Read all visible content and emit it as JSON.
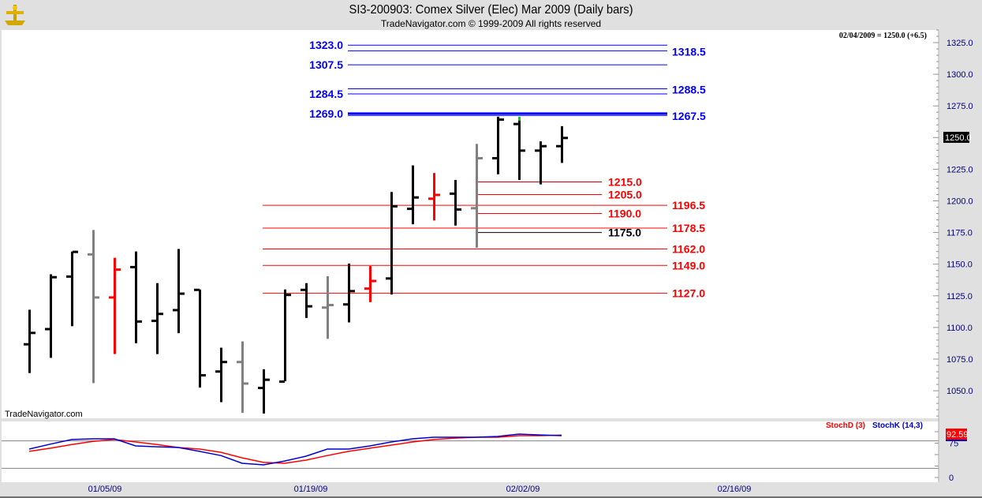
{
  "header": {
    "title": "SI3-200903:  Comex Silver (Elec) Mar 2009  (Daily bars)",
    "subtitle": "TradeNavigator.com © 1999-2009 All rights reserved"
  },
  "info_readout": "02/04/2009 = 1250.0 (+6.5)",
  "watermark": "TradeNavigator.com",
  "current_price_label": "1250.0",
  "colors": {
    "up": "#000000",
    "down_gray": "#808080",
    "red": "#ff0000",
    "blue": "#0000ff",
    "stochD": "#ff0000",
    "stochK": "#0000cc"
  },
  "chart_data": [
    {
      "type": "ohlc",
      "title": "SI3-200903:  Comex Silver (Elec) Mar 2009  (Daily bars)",
      "ylim": [
        1030,
        1335
      ],
      "yticks": [
        "1325.0",
        "1300.0",
        "1275.0",
        "1250.0",
        "1225.0",
        "1200.0",
        "1175.0",
        "1150.0",
        "1125.0",
        "1100.0",
        "1075.0",
        "1050.0"
      ],
      "xticks": [
        "01/05/09",
        "01/19/09",
        "02/02/09",
        "02/16/09"
      ],
      "bars": [
        {
          "date": "12/29/08",
          "o": 1087,
          "h": 1114,
          "l": 1064,
          "c": 1096,
          "color": "black"
        },
        {
          "date": "12/30/08",
          "o": 1099,
          "h": 1142,
          "l": 1076,
          "c": 1140,
          "color": "black"
        },
        {
          "date": "12/31/08",
          "o": 1140.5,
          "h": 1160,
          "l": 1101,
          "c": 1160,
          "color": "black"
        },
        {
          "date": "01/02/09",
          "o": 1158,
          "h": 1177,
          "l": 1056,
          "c": 1124,
          "color": "gray"
        },
        {
          "date": "01/05/09",
          "o": 1124,
          "h": 1155,
          "l": 1079,
          "c": 1146,
          "color": "red"
        },
        {
          "date": "01/06/09",
          "o": 1148,
          "h": 1160,
          "l": 1087.5,
          "c": 1105,
          "color": "black"
        },
        {
          "date": "01/07/09",
          "o": 1105.5,
          "h": 1135,
          "l": 1079,
          "c": 1111,
          "color": "black"
        },
        {
          "date": "01/08/09",
          "o": 1114,
          "h": 1162,
          "l": 1095.5,
          "c": 1127,
          "color": "black"
        },
        {
          "date": "01/09/09",
          "o": 1130,
          "h": 1130,
          "l": 1052.5,
          "c": 1062.5,
          "color": "black"
        },
        {
          "date": "01/12/09",
          "o": 1065.5,
          "h": 1084,
          "l": 1041,
          "c": 1073,
          "color": "black"
        },
        {
          "date": "01/13/09",
          "o": 1073,
          "h": 1089,
          "l": 1032.5,
          "c": 1056,
          "color": "gray"
        },
        {
          "date": "01/14/09",
          "o": 1052.5,
          "h": 1067,
          "l": 1032,
          "c": 1059,
          "color": "black"
        },
        {
          "date": "01/15/09",
          "o": 1057.5,
          "h": 1130,
          "l": 1057.5,
          "c": 1126,
          "color": "black"
        },
        {
          "date": "01/16/09",
          "o": 1130,
          "h": 1135,
          "l": 1107.5,
          "c": 1117,
          "color": "black"
        },
        {
          "date": "01/20/09",
          "o": 1116,
          "h": 1140.5,
          "l": 1091,
          "c": 1118,
          "color": "gray"
        },
        {
          "date": "01/21/09",
          "o": 1118.5,
          "h": 1150.5,
          "l": 1104,
          "c": 1129,
          "color": "black"
        },
        {
          "date": "01/22/09",
          "o": 1131,
          "h": 1148.5,
          "l": 1120,
          "c": 1137,
          "color": "red"
        },
        {
          "date": "01/23/09",
          "o": 1139,
          "h": 1207,
          "l": 1126,
          "c": 1196,
          "color": "black"
        },
        {
          "date": "01/26/09",
          "o": 1194,
          "h": 1228,
          "l": 1181.5,
          "c": 1203,
          "color": "black"
        },
        {
          "date": "01/27/09",
          "o": 1202,
          "h": 1222,
          "l": 1184.5,
          "c": 1205,
          "color": "red"
        },
        {
          "date": "01/28/09",
          "o": 1206,
          "h": 1216.5,
          "l": 1180.5,
          "c": 1193.5,
          "color": "black"
        },
        {
          "date": "01/29/09",
          "o": 1194.5,
          "h": 1245,
          "l": 1163,
          "c": 1234,
          "color": "gray"
        },
        {
          "date": "01/30/09",
          "o": 1234,
          "h": 1266.5,
          "l": 1221,
          "c": 1264.5,
          "color": "black"
        },
        {
          "date": "02/02/09",
          "o": 1261,
          "h": 1264,
          "l": 1216.5,
          "c": 1240,
          "color": "black",
          "marker": "green"
        },
        {
          "date": "02/03/09",
          "o": 1240,
          "h": 1247,
          "l": 1213,
          "c": 1243.5,
          "color": "black"
        },
        {
          "date": "02/04/09",
          "o": 1243.5,
          "h": 1259,
          "l": 1230,
          "c": 1250,
          "color": "black"
        }
      ],
      "levels_blue": {
        "left": [
          {
            "value": 1323.0,
            "label": "1323.0"
          },
          {
            "value": 1307.5,
            "label": "1307.5"
          },
          {
            "value": 1284.5,
            "label": "1284.5"
          },
          {
            "value": 1269.0,
            "label": "1269.0"
          }
        ],
        "right": [
          {
            "value": 1318.5,
            "label": "1318.5"
          },
          {
            "value": 1288.5,
            "label": "1288.5"
          },
          {
            "value": 1267.5,
            "label": "1267.5"
          }
        ]
      },
      "levels_long": [
        {
          "value": 1196.5,
          "label": "1196.5",
          "color": "#ff0000"
        },
        {
          "value": 1178.5,
          "label": "1178.5",
          "color": "#ff0000"
        },
        {
          "value": 1162.0,
          "label": "1162.0",
          "color": "#ff0000"
        },
        {
          "value": 1149.0,
          "label": "1149.0",
          "color": "#ff0000"
        },
        {
          "value": 1127.0,
          "label": "1127.0",
          "color": "#ff0000"
        }
      ],
      "levels_short": [
        {
          "value": 1215.0,
          "label": "1215.0",
          "color": "#cc0000"
        },
        {
          "value": 1205.0,
          "label": "1205.0",
          "color": "#ff0000"
        },
        {
          "value": 1190.0,
          "label": "1190.0",
          "color": "#ff0000"
        },
        {
          "value": 1175.0,
          "label": "1175.0",
          "color": "#000000"
        }
      ]
    },
    {
      "type": "line",
      "ylim": [
        0,
        100
      ],
      "yticks": [
        "75",
        "0"
      ],
      "reference_lines": [
        80,
        20
      ],
      "last_value_label": "92.59",
      "series": [
        {
          "name": "StochD (3)",
          "color": "#ff0000",
          "values": [
            57,
            64,
            72,
            79,
            83,
            77.6,
            72,
            65.5,
            62,
            55,
            43,
            33,
            31,
            38,
            48,
            57,
            64,
            70.7,
            77.6,
            83,
            86,
            88,
            88,
            91.4,
            91.4,
            92.59
          ]
        },
        {
          "name": "StochK (14,3)",
          "color": "#0000cc",
          "values": [
            62,
            73,
            83,
            84.5,
            84.5,
            69,
            67,
            65.5,
            57,
            48,
            31,
            27.6,
            36,
            46.5,
            62,
            62,
            69,
            77.6,
            84.5,
            88,
            88,
            88,
            89.7,
            94.8,
            93,
            91.4
          ]
        }
      ]
    }
  ]
}
